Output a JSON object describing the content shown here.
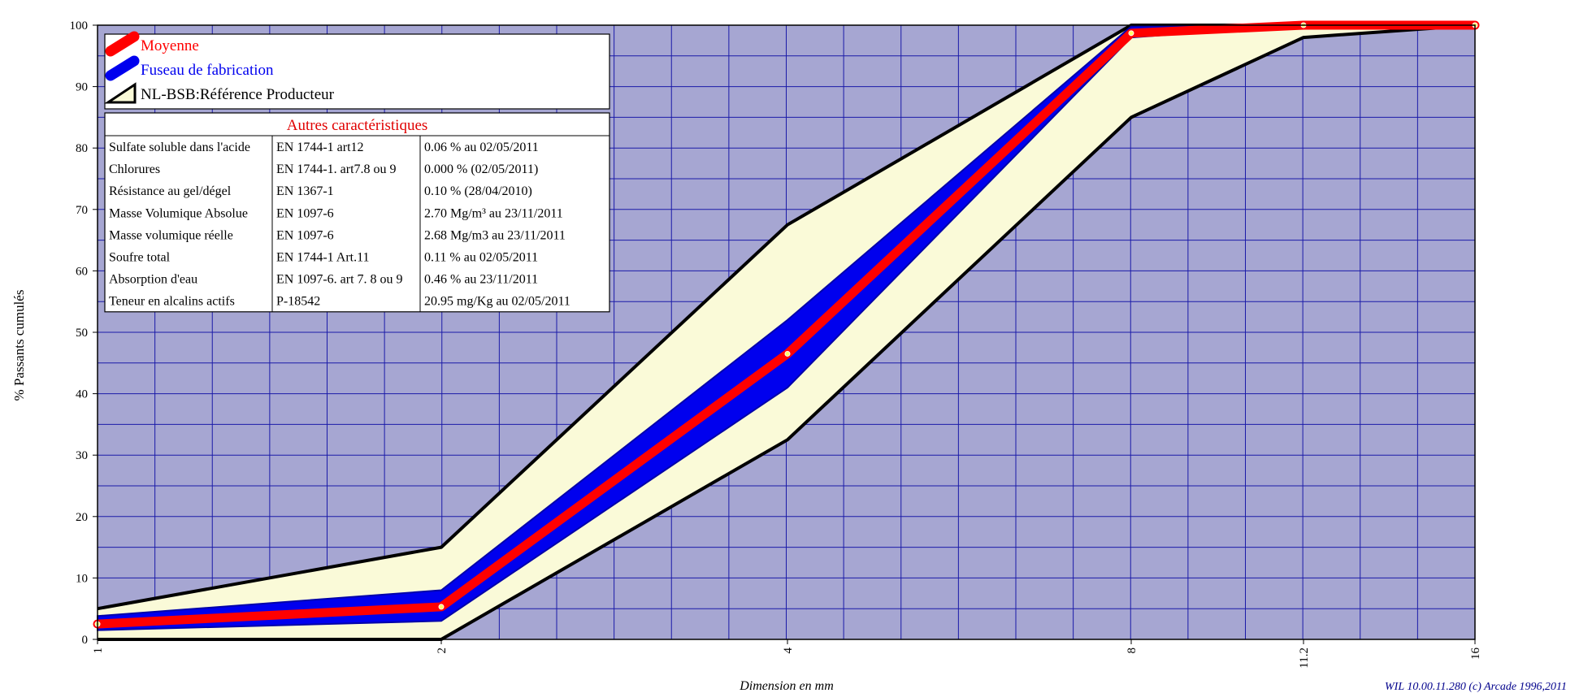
{
  "chart_data": {
    "type": "area",
    "xlabel": "Dimension en mm",
    "ylabel": "% Passants cumulés",
    "x": [
      1,
      2,
      4,
      8,
      11.2,
      16
    ],
    "x_tick_labels": [
      "1",
      "2",
      "4",
      "8",
      "11.2",
      "16"
    ],
    "ylim": [
      0,
      100
    ],
    "y_ticks": [
      0,
      10,
      20,
      30,
      40,
      50,
      60,
      70,
      80,
      90,
      100
    ],
    "x_scale": "log",
    "grid": true,
    "legend_position": "top-left",
    "series": [
      {
        "name": "Moyenne",
        "color": "#ff0000",
        "kind": "line",
        "values": [
          2.5,
          5.3,
          46.5,
          98.7,
          100,
          100
        ]
      },
      {
        "name": "Fuseau de fabrication",
        "color": "#0000ee",
        "kind": "band",
        "lower": [
          1.5,
          3,
          41,
          98,
          100,
          100
        ],
        "upper": [
          3.8,
          8,
          52,
          99.8,
          100,
          100
        ]
      },
      {
        "name": "NL-BSB:Référence Producteur",
        "color": "#000000",
        "kind": "band",
        "fill": "#fafad8",
        "lower": [
          0,
          0,
          32.5,
          85,
          98,
          100
        ],
        "upper": [
          5,
          15,
          67.5,
          100,
          100,
          100
        ]
      }
    ]
  },
  "table": {
    "title": "Autres caractéristiques",
    "rows": [
      [
        "Sulfate soluble dans l'acide",
        "EN 1744-1 art12",
        "0.06 %  au 02/05/2011"
      ],
      [
        "Chlorures",
        "EN 1744-1. art7.8 ou 9",
        "0.000 %  (02/05/2011)"
      ],
      [
        "Résistance au gel/dégel",
        "EN 1367-1",
        "0.10 %  (28/04/2010)"
      ],
      [
        "Masse Volumique Absolue",
        "EN 1097-6",
        "2.70 Mg/m³  au 23/11/2011"
      ],
      [
        "Masse volumique réelle",
        "EN 1097-6",
        "2.68 Mg/m3  au 23/11/2011"
      ],
      [
        "Soufre total",
        "EN 1744-1 Art.11",
        "0.11 %  au 02/05/2011"
      ],
      [
        "Absorption d'eau",
        "EN 1097-6. art 7. 8 ou 9",
        "0.46 %  au 23/11/2011"
      ],
      [
        "Teneur en alcalins actifs",
        "P-18542",
        "20.95 mg/Kg au 02/05/2011"
      ]
    ]
  },
  "copyright": "WIL 10.00.11.280 (c) Arcade 1996,2011",
  "colors": {
    "plot_background": "#a6a6d2",
    "grid": "#1a1aa8"
  }
}
